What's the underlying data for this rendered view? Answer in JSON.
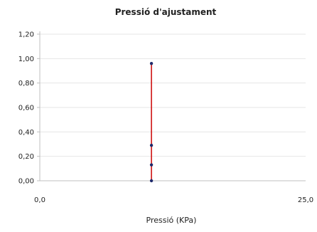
{
  "chart_data": {
    "type": "scatter",
    "title": "Pressió d'ajustament",
    "xlabel": "Pressió (KPa)",
    "ylabel": "",
    "xlim": [
      0,
      25
    ],
    "ylim": [
      0,
      1.2
    ],
    "x_ticks": [
      "0,0",
      "25,0"
    ],
    "y_ticks": [
      "0,00",
      "0,20",
      "0,40",
      "0,60",
      "0,80",
      "1,00",
      "1,20"
    ],
    "grid": true,
    "legend": "none",
    "series": [
      {
        "points": [
          {
            "x": 10.5,
            "y": 0.0
          },
          {
            "x": 10.5,
            "y": 0.13
          },
          {
            "x": 10.5,
            "y": 0.29
          },
          {
            "x": 10.5,
            "y": 0.96
          }
        ],
        "line_color": "#cc0000",
        "marker_color": "#1f2a6b"
      }
    ]
  }
}
